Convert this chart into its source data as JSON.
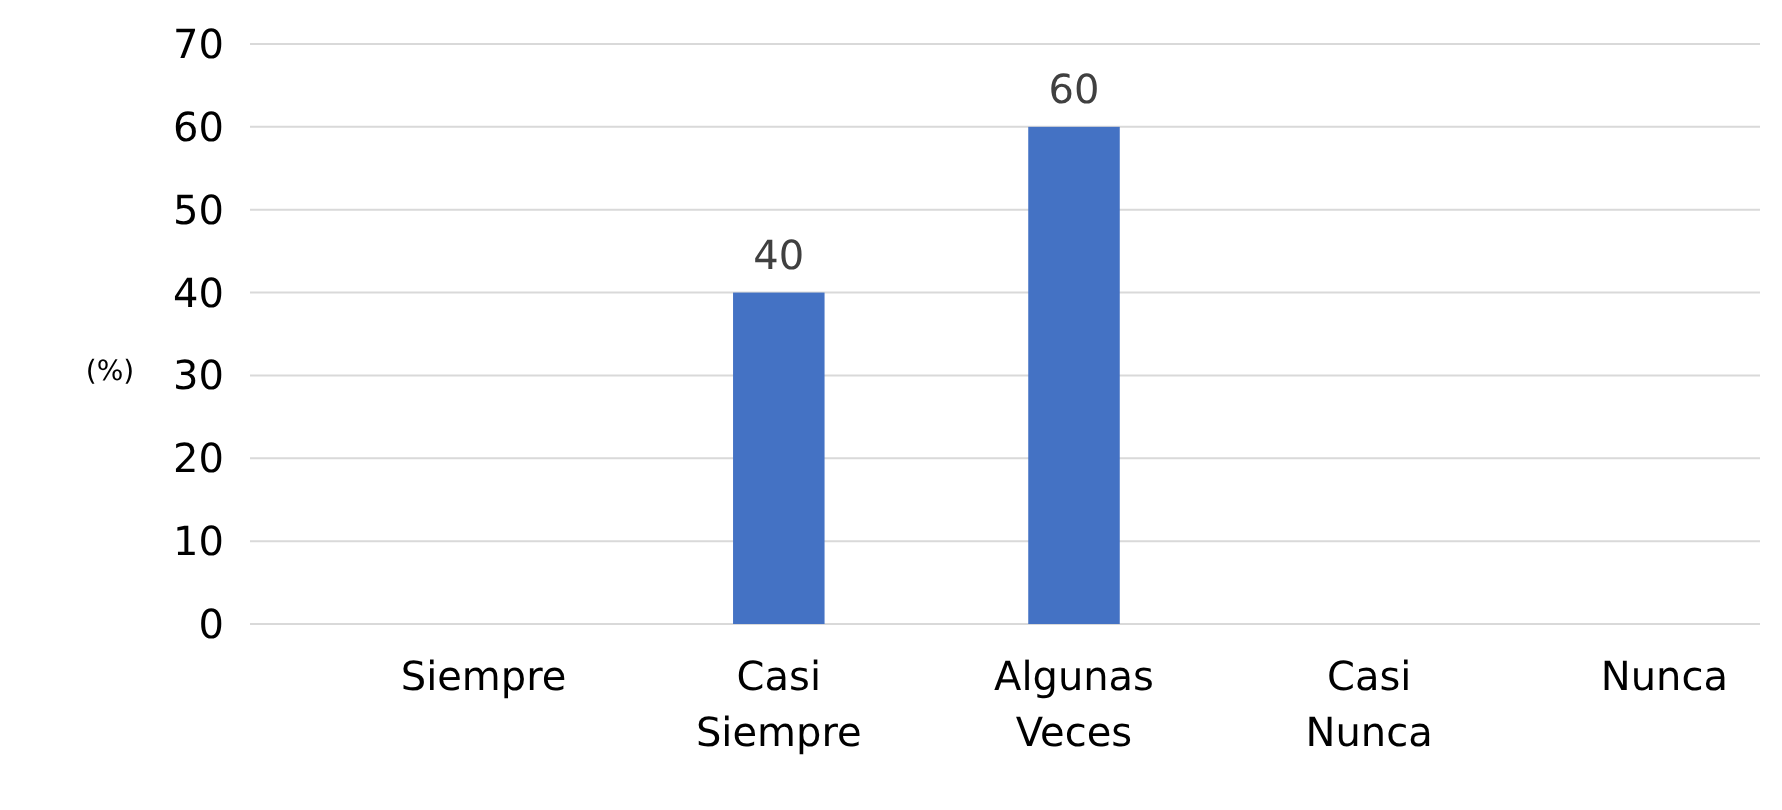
{
  "chart_data": {
    "type": "bar",
    "ylabel": "(%)",
    "categories": [
      "Siempre",
      "Casi Siempre",
      "Algunas Veces",
      "Casi Nunca",
      "Nunca"
    ],
    "values": [
      0,
      40,
      60,
      0,
      0
    ],
    "color": "#4472c4",
    "value_labels": [
      null,
      "40",
      "60",
      null,
      null
    ],
    "ylim": [
      0,
      70
    ],
    "yticks": [
      0,
      10,
      20,
      30,
      40,
      50,
      60,
      70
    ],
    "grid": "y"
  }
}
